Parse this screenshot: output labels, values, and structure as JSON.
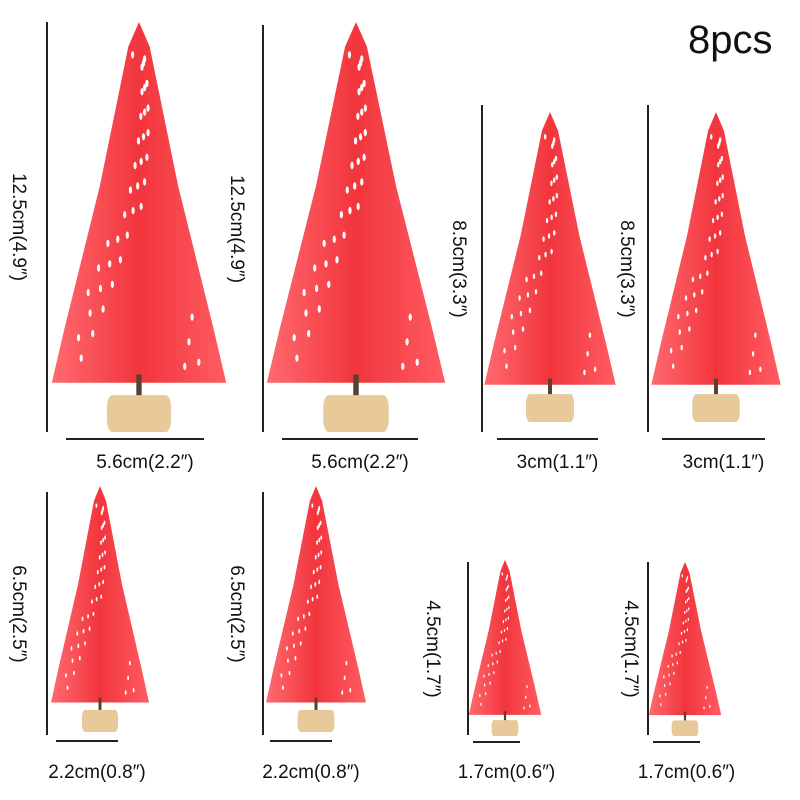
{
  "title": "8pcs",
  "colors": {
    "tree": "#f2353d",
    "snow": "#ffffff",
    "base": "#e8c99a"
  },
  "trees": [
    {
      "height_label": "12.5cm(4.9″)",
      "width_label": "5.6cm(2.2″)"
    },
    {
      "height_label": "12.5cm(4.9″)",
      "width_label": "5.6cm(2.2″)"
    },
    {
      "height_label": "8.5cm(3.3″)",
      "width_label": "3cm(1.1″)"
    },
    {
      "height_label": "8.5cm(3.3″)",
      "width_label": "3cm(1.1″)"
    },
    {
      "height_label": "6.5cm(2.5″)",
      "width_label": "2.2cm(0.8″)"
    },
    {
      "height_label": "6.5cm(2.5″)",
      "width_label": "2.2cm(0.8″)"
    },
    {
      "height_label": "4.5cm(1.7″)",
      "width_label": "1.7cm(0.6″)"
    },
    {
      "height_label": "4.5cm(1.7″)",
      "width_label": "1.7cm(0.6″)"
    }
  ]
}
